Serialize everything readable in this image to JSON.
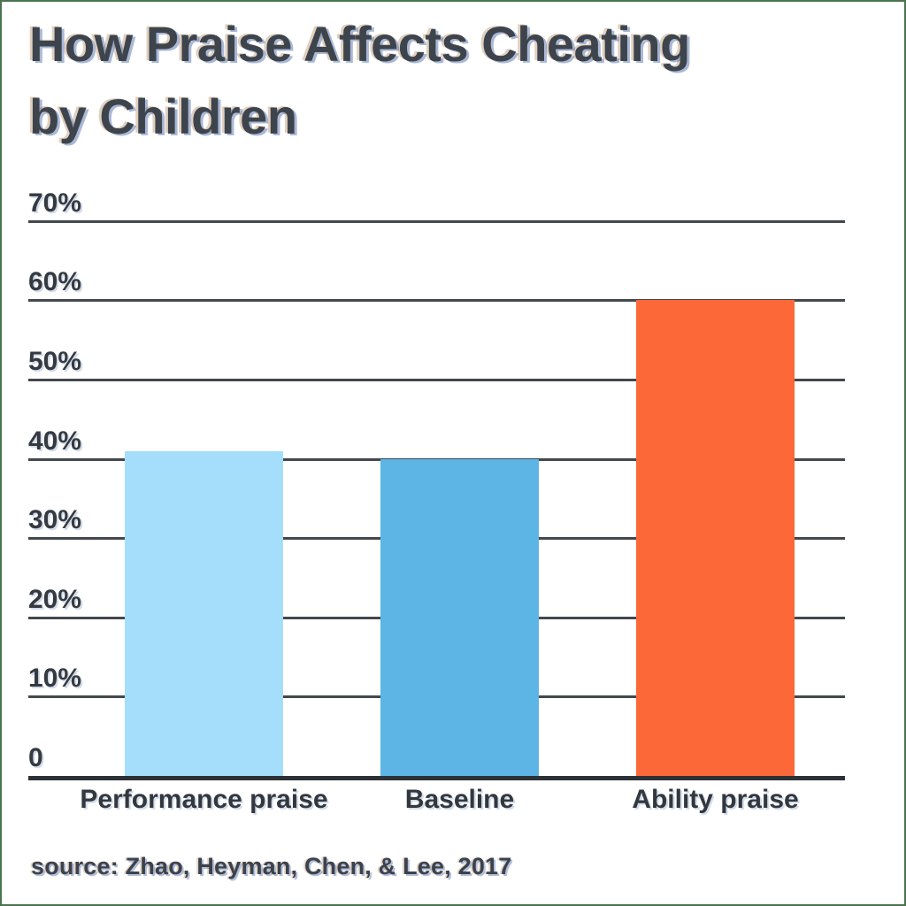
{
  "title": {
    "line1": "How Praise Affects Cheating",
    "line2": "by Children"
  },
  "source_note": "source: Zhao, Heyman, Chen, & Lee, 2017",
  "chart_data": {
    "type": "bar",
    "title": "How Praise Affects Cheating by Children",
    "categories": [
      "Performance praise",
      "Baseline",
      "Ability praise"
    ],
    "values": [
      41,
      40,
      60
    ],
    "unit": "%",
    "bar_colors": [
      "#a4defa",
      "#5db5e5",
      "#fc6838"
    ],
    "xlabel": "",
    "ylabel": "",
    "ylim": [
      0,
      70
    ],
    "yticks": [
      {
        "value": 70,
        "label": "70%"
      },
      {
        "value": 60,
        "label": "60%"
      },
      {
        "value": 50,
        "label": "50%"
      },
      {
        "value": 40,
        "label": "40%"
      },
      {
        "value": 30,
        "label": "30%"
      },
      {
        "value": 20,
        "label": "20%"
      },
      {
        "value": 10,
        "label": "10%"
      },
      {
        "value": 0,
        "label": "0"
      }
    ],
    "grid": true,
    "legend": false,
    "annotations": [
      "source: Zhao, Heyman, Chen, & Lee, 2017"
    ]
  },
  "colors": {
    "background": "#ffffff",
    "edge_matte": "#4a7350",
    "title_text": "#3e444c",
    "axis_text": "#353a41",
    "gridline": "#43484d",
    "axis_line": "#2c3136",
    "bar_performance_praise": "#a4defa",
    "bar_baseline": "#5db5e5",
    "bar_ability_praise": "#fc6838",
    "source_text": "#3c424b"
  }
}
